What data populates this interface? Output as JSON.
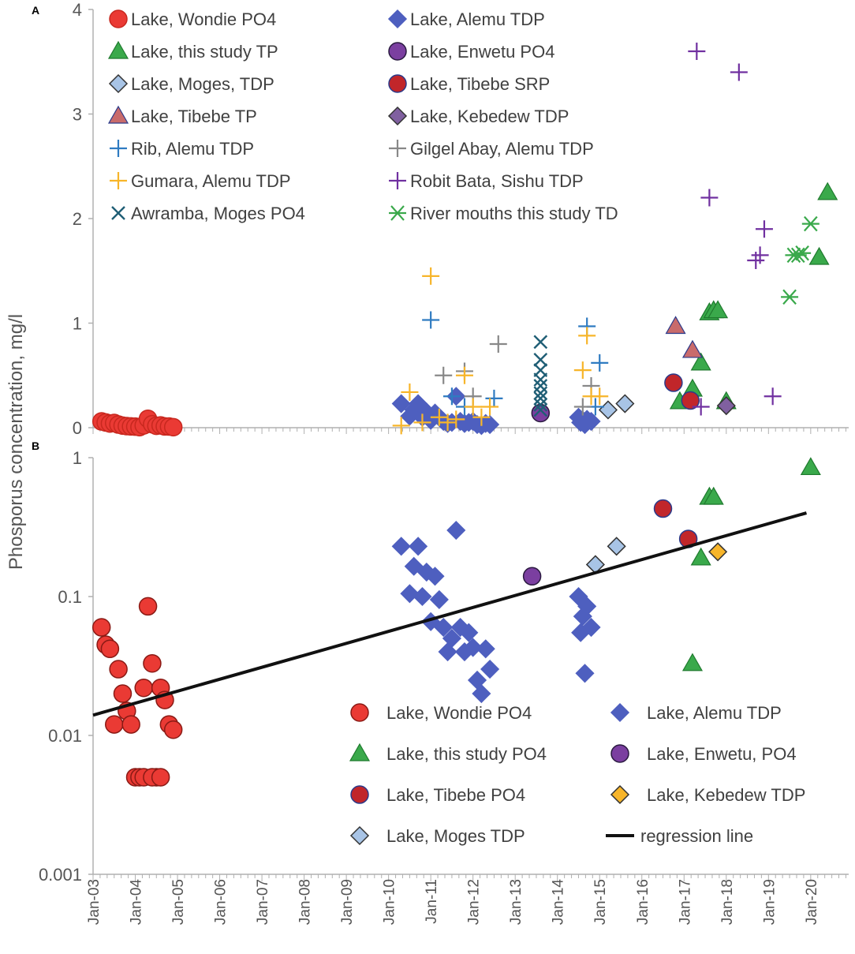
{
  "figure": {
    "ylabel": "Phosporus concentration, mg/l",
    "x_ticks": [
      "Jan-03",
      "Jan-04",
      "Jan-05",
      "Jan-06",
      "Jan-07",
      "Jan-08",
      "Jan-09",
      "Jan-10",
      "Jan-11",
      "Jan-12",
      "Jan-13",
      "Jan-14",
      "Jan-15",
      "Jan-16",
      "Jan-17",
      "Jan-18",
      "Jan-19",
      "Jan-20"
    ],
    "xlim": [
      2003.0,
      2020.9
    ]
  },
  "chart_data": [
    {
      "panel_label": "A",
      "type": "scatter",
      "yscale": "linear",
      "ylim": [
        0,
        4
      ],
      "y_ticks": [
        "0",
        "1",
        "2",
        "3",
        "4"
      ],
      "legend_position": "top-left",
      "series": [
        {
          "name": "Lake, Wondie PO4",
          "marker": "circle",
          "color": "#ea3a34",
          "edge": "#c8281f",
          "x": [
            2003.2,
            2003.3,
            2003.4,
            2003.5,
            2003.6,
            2003.7,
            2003.8,
            2003.9,
            2004.0,
            2004.1,
            2004.2,
            2004.3,
            2004.4,
            2004.5,
            2004.6,
            2004.7,
            2004.8,
            2004.9
          ],
          "y": [
            0.06,
            0.05,
            0.04,
            0.045,
            0.03,
            0.02,
            0.015,
            0.012,
            0.01,
            0.005,
            0.022,
            0.085,
            0.033,
            0.018,
            0.022,
            0.012,
            0.011,
            0.005
          ]
        },
        {
          "name": "Lake, Alemu TDP",
          "marker": "diamond",
          "color": "#4e5fbf",
          "edge": "#4e5fbf",
          "x": [
            2010.3,
            2010.5,
            2010.6,
            2010.7,
            2010.8,
            2010.9,
            2011.0,
            2011.1,
            2011.2,
            2011.3,
            2011.4,
            2011.5,
            2011.6,
            2011.7,
            2011.8,
            2011.9,
            2012.0,
            2012.1,
            2012.2,
            2012.3,
            2012.4,
            2014.5,
            2014.55,
            2014.6,
            2014.65,
            2014.7,
            2014.8
          ],
          "y": [
            0.23,
            0.11,
            0.17,
            0.23,
            0.1,
            0.15,
            0.07,
            0.14,
            0.1,
            0.06,
            0.04,
            0.05,
            0.3,
            0.06,
            0.04,
            0.05,
            0.06,
            0.03,
            0.02,
            0.04,
            0.03,
            0.1,
            0.05,
            0.07,
            0.03,
            0.08,
            0.06
          ]
        },
        {
          "name": "Lake, this study TP",
          "marker": "triangle",
          "color": "#3aa94b",
          "edge": "#1f7a2e",
          "x": [
            2016.9,
            2017.2,
            2017.4,
            2017.6,
            2017.7,
            2017.8,
            2018.0,
            2020.2,
            2020.4
          ],
          "y": [
            0.25,
            0.37,
            0.62,
            1.1,
            1.12,
            1.12,
            0.25,
            1.63,
            2.25
          ]
        },
        {
          "name": "Lake, Enwetu  PO4",
          "marker": "circle",
          "color": "#7b3fa0",
          "edge": "#2a1a40",
          "x": [
            2013.6
          ],
          "y": [
            0.14
          ]
        },
        {
          "name": "Lake, Moges, TDP",
          "marker": "diamond",
          "color": "#a8c4e6",
          "edge": "#333333",
          "x": [
            2015.2,
            2015.6
          ],
          "y": [
            0.17,
            0.23
          ]
        },
        {
          "name": "Lake, Tibebe  SRP",
          "marker": "circle",
          "color": "#c1262a",
          "edge": "#2b3a8a",
          "x": [
            2016.75,
            2017.15
          ],
          "y": [
            0.43,
            0.26
          ]
        },
        {
          "name": "Lake, Tibebe  TP",
          "marker": "triangle",
          "color": "#c96b6b",
          "edge": "#2b3a8a",
          "x": [
            2016.8,
            2017.2
          ],
          "y": [
            0.97,
            0.74
          ]
        },
        {
          "name": "Lake, Kebedew TDP",
          "marker": "diamond",
          "color": "#8060a0",
          "edge": "#333333",
          "x": [
            2018.0
          ],
          "y": [
            0.21
          ]
        },
        {
          "name": "Rib, Alemu TDP",
          "marker": "plus",
          "color": "#2f7bc1",
          "edge": "#2f7bc1",
          "x": [
            2011.0,
            2011.2,
            2011.5,
            2011.8,
            2012.5,
            2014.7,
            2014.9,
            2015.0
          ],
          "y": [
            1.03,
            0.1,
            0.3,
            0.2,
            0.28,
            0.97,
            0.2,
            0.62
          ]
        },
        {
          "name": "Gilgel Abay, Alemu TDP",
          "marker": "plus",
          "color": "#888888",
          "edge": "#888888",
          "x": [
            2011.3,
            2011.8,
            2012.0,
            2012.6,
            2014.6,
            2014.8
          ],
          "y": [
            0.5,
            0.54,
            0.3,
            0.8,
            0.2,
            0.4
          ]
        },
        {
          "name": "Gumara, Alemu TDP",
          "marker": "plus",
          "color": "#f7b52a",
          "edge": "#f7b52a",
          "x": [
            2010.3,
            2010.5,
            2010.8,
            2011.0,
            2011.2,
            2011.4,
            2011.6,
            2011.8,
            2012.0,
            2012.2,
            2012.4,
            2014.6,
            2014.7,
            2014.8,
            2015.0
          ],
          "y": [
            0.02,
            0.34,
            0.05,
            1.45,
            0.1,
            0.05,
            0.08,
            0.5,
            0.2,
            0.1,
            0.2,
            0.55,
            0.88,
            0.3,
            0.3
          ]
        },
        {
          "name": "Robit Bata, Sishu TDP",
          "marker": "plus",
          "color": "#7030a0",
          "edge": "#7030a0",
          "x": [
            2017.3,
            2017.4,
            2017.6,
            2018.3,
            2018.7,
            2018.8,
            2018.9,
            2019.1
          ],
          "y": [
            3.6,
            0.2,
            2.2,
            3.4,
            1.6,
            1.65,
            1.9,
            0.3
          ]
        },
        {
          "name": "Awramba, Moges PO4",
          "marker": "x",
          "color": "#1f5e75",
          "edge": "#1f5e75",
          "x": [
            2013.6,
            2013.6,
            2013.6,
            2013.6,
            2013.6,
            2013.6,
            2013.6,
            2013.6,
            2013.6
          ],
          "y": [
            0.82,
            0.65,
            0.55,
            0.46,
            0.4,
            0.33,
            0.28,
            0.22,
            0.17
          ]
        },
        {
          "name": "River mouths this study TD",
          "marker": "asterisk",
          "color": "#3aa94b",
          "edge": "#3aa94b",
          "x": [
            2019.5,
            2019.6,
            2019.7,
            2019.8,
            2020.0
          ],
          "y": [
            1.25,
            1.65,
            1.65,
            1.67,
            1.95
          ]
        }
      ]
    },
    {
      "panel_label": "B",
      "type": "scatter",
      "yscale": "log",
      "ylim": [
        0.001,
        1
      ],
      "y_ticks": [
        "0.001",
        "0.01",
        "0.1",
        "1"
      ],
      "legend_position": "bottom-right",
      "series": [
        {
          "name": "Lake, Wondie PO4",
          "marker": "circle",
          "color": "#ea3a34",
          "edge": "#8a1a15",
          "x": [
            2003.2,
            2003.3,
            2003.4,
            2003.5,
            2003.6,
            2003.7,
            2003.8,
            2003.9,
            2004.0,
            2004.1,
            2004.2,
            2004.3,
            2004.4,
            2004.5,
            2004.6,
            2004.7,
            2004.8,
            2004.9,
            2004.2,
            2004.4,
            2004.6
          ],
          "y": [
            0.06,
            0.045,
            0.042,
            0.012,
            0.03,
            0.02,
            0.015,
            0.012,
            0.005,
            0.005,
            0.022,
            0.085,
            0.033,
            0.005,
            0.022,
            0.018,
            0.012,
            0.011,
            0.005,
            0.005,
            0.005
          ]
        },
        {
          "name": "Lake, Alemu TDP",
          "marker": "diamond",
          "color": "#4e5fbf",
          "edge": "#4e5fbf",
          "x": [
            2010.3,
            2010.5,
            2010.6,
            2010.7,
            2010.8,
            2010.9,
            2011.0,
            2011.1,
            2011.2,
            2011.3,
            2011.4,
            2011.5,
            2011.6,
            2011.7,
            2011.8,
            2011.9,
            2012.0,
            2012.1,
            2012.2,
            2012.3,
            2012.4,
            2014.5,
            2014.55,
            2014.6,
            2014.65,
            2014.7,
            2014.8
          ],
          "y": [
            0.23,
            0.105,
            0.165,
            0.23,
            0.1,
            0.15,
            0.066,
            0.14,
            0.095,
            0.06,
            0.04,
            0.05,
            0.3,
            0.06,
            0.04,
            0.055,
            0.043,
            0.025,
            0.02,
            0.042,
            0.03,
            0.1,
            0.055,
            0.072,
            0.028,
            0.085,
            0.06
          ]
        },
        {
          "name": "Lake, this study PO4",
          "marker": "triangle",
          "color": "#3aa94b",
          "edge": "#1f7a2e",
          "x": [
            2017.2,
            2017.4,
            2017.6,
            2017.7,
            2020.0
          ],
          "y": [
            0.033,
            0.19,
            0.52,
            0.52,
            0.85
          ]
        },
        {
          "name": "Lake, Enwetu, PO4",
          "marker": "circle",
          "color": "#7b3fa0",
          "edge": "#2a1a40",
          "x": [
            2013.4
          ],
          "y": [
            0.14
          ]
        },
        {
          "name": "Lake, Tibebe PO4",
          "marker": "circle",
          "color": "#c1262a",
          "edge": "#2b3a8a",
          "x": [
            2016.5,
            2017.1
          ],
          "y": [
            0.43,
            0.26
          ]
        },
        {
          "name": "Lake, Kebedew TDP",
          "marker": "diamond",
          "color": "#f7b52a",
          "edge": "#333333",
          "x": [
            2017.8
          ],
          "y": [
            0.21
          ]
        },
        {
          "name": "Lake, Moges TDP",
          "marker": "diamond",
          "color": "#a8c4e6",
          "edge": "#333333",
          "x": [
            2014.9,
            2015.4
          ],
          "y": [
            0.17,
            0.23
          ]
        },
        {
          "name": "regression line",
          "marker": "line",
          "color": "#111111",
          "edge": "#111111",
          "x": [
            2003.0,
            2019.9
          ],
          "y": [
            0.014,
            0.4
          ]
        }
      ]
    }
  ]
}
